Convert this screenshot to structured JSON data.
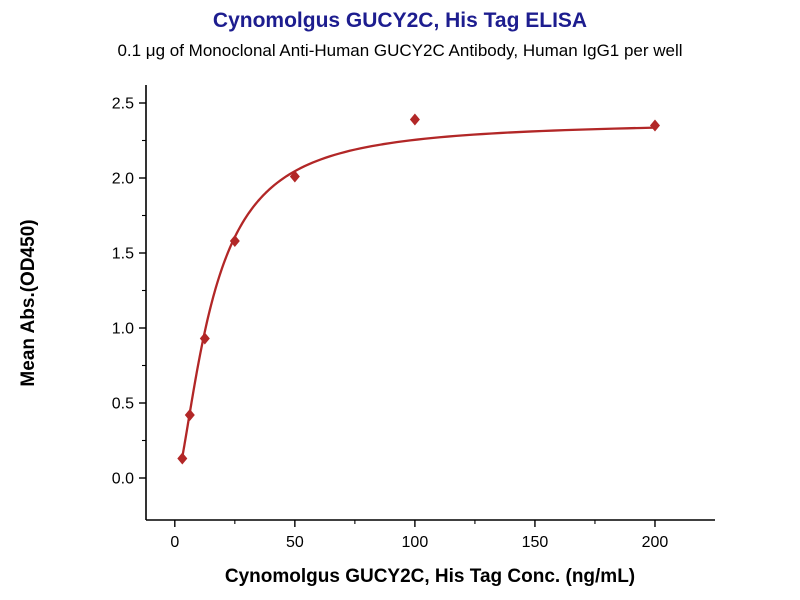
{
  "chart_data": {
    "type": "scatter",
    "title": "Cynomolgus GUCY2C, His Tag ELISA",
    "subtitle": "0.1 μg of Monoclonal Anti-Human GUCY2C Antibody, Human IgG1 per well",
    "xlabel": "Cynomolgus GUCY2C, His Tag Conc. (ng/mL)",
    "ylabel": "Mean Abs.(OD450)",
    "series": [
      {
        "name": "Cynomolgus GUCY2C, His Tag",
        "x": [
          3.125,
          6.25,
          12.5,
          25,
          50,
          100,
          200
        ],
        "y": [
          0.13,
          0.42,
          0.93,
          1.58,
          2.01,
          2.39,
          2.35
        ],
        "marker": "diamond",
        "color": "#b22727"
      }
    ],
    "fit_curve": {
      "model": "4PL",
      "bottom": -0.05,
      "top": 2.38,
      "ec50": 15.3,
      "hill": 1.55,
      "x_start": 3.125,
      "x_end": 200
    },
    "xlim": [
      -12,
      225
    ],
    "ylim": [
      -0.28,
      2.62
    ],
    "xticks": [
      0,
      50,
      100,
      150,
      200
    ],
    "xticklabels": [
      "0",
      "50",
      "100",
      "150",
      "200"
    ],
    "yticks": [
      0,
      0.5,
      1,
      1.5,
      2,
      2.5
    ],
    "yticklabels": [
      "0.0",
      "0.5",
      "1.0",
      "1.5",
      "2.0",
      "2.5"
    ],
    "grid": false,
    "legend": "none",
    "colors": {
      "title": "#1d1d8f",
      "subtitle": "#000000",
      "axis": "#000000",
      "curve": "#b22727"
    }
  }
}
